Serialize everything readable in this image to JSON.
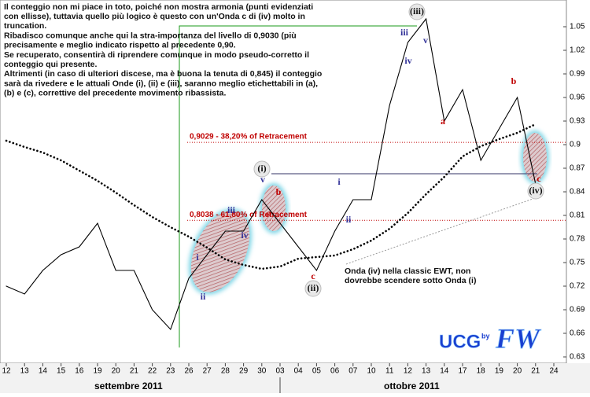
{
  "chart_data": {
    "type": "line",
    "title": [
      "Il conteggio non mi piace in toto, poiché non mostra armonia (punti evidenziati",
      "con ellisse), tuttavia quello più logico è questo con un'Onda c di (iv) molto in",
      "truncation.",
      "Ribadisco comunque anche qui la stra-importanza del livello di 0,9030 (più",
      "precisamente e meglio indicato rispetto al precedente 0,90.",
      "Se recuperato, consentirà di riprendere comunque in modo pseudo-corretto il",
      "conteggio qui presente.",
      "Altrimenti (in caso di ulteriori discese, ma è buona la tenuta di 0,845) il conteggio",
      "sarà da rivedere e le attuali Onde (i), (ii) e (iii), saranno meglio etichettabili in (a),",
      "(b) e (c), correttive del precedente movimento ribassista."
    ],
    "categories": [
      "12",
      "13",
      "14",
      "15",
      "16",
      "19",
      "20",
      "21",
      "22",
      "23",
      "26",
      "27",
      "28",
      "29",
      "30",
      "03",
      "04",
      "05",
      "06",
      "07",
      "10",
      "11",
      "12",
      "13",
      "14",
      "17",
      "18",
      "19",
      "20",
      "21",
      "24"
    ],
    "months": [
      "settembre 2011",
      "ottobre 2011"
    ],
    "series": [
      {
        "color": "#000000",
        "style": "solid",
        "values": [
          0.72,
          0.71,
          0.74,
          0.76,
          0.77,
          0.8,
          0.74,
          0.74,
          0.69,
          0.665,
          0.73,
          0.76,
          0.79,
          0.79,
          0.83,
          0.8,
          0.77,
          0.74,
          0.79,
          0.83,
          0.83,
          0.95,
          1.03,
          1.06,
          0.93,
          0.97,
          0.88,
          0.92,
          0.96,
          0.85,
          null
        ]
      },
      {
        "color": "#000000",
        "style": "dotted",
        "values": [
          0.905,
          0.897,
          0.89,
          0.88,
          0.867,
          0.854,
          0.839,
          0.823,
          0.808,
          0.795,
          0.783,
          0.769,
          0.754,
          0.747,
          0.742,
          0.745,
          0.755,
          0.757,
          0.759,
          0.767,
          0.778,
          0.793,
          0.813,
          0.837,
          0.859,
          0.885,
          0.898,
          0.907,
          0.915,
          0.926,
          null
        ]
      }
    ],
    "levels": [
      {
        "value": 0.9029,
        "label": "0,9029 - 38,20% of Retracement"
      },
      {
        "value": 0.8038,
        "label": "0,8038 - 61,80% of Retracement"
      }
    ],
    "wave_labels": [
      "(iii)",
      "iii",
      "v",
      "iv",
      "(i)",
      "v",
      "a",
      "b",
      "iii",
      "iv",
      "i",
      "ii",
      "c",
      "(ii)",
      "i",
      "ii",
      "a",
      "b",
      "c",
      "(iv)"
    ],
    "note": [
      "Onda (iv) nella classic EWT, non",
      "dovrebbe scendere sotto Onda (i)"
    ],
    "logo": {
      "left": "UCG",
      "by": "by",
      "right": "FW"
    },
    "ylim": [
      0.622,
      1.084
    ],
    "yticks": [
      0.63,
      0.66,
      0.69,
      0.72,
      0.75,
      0.78,
      0.81,
      0.84,
      0.87,
      0.9,
      0.93,
      0.96,
      0.99,
      1.02,
      1.05
    ]
  }
}
